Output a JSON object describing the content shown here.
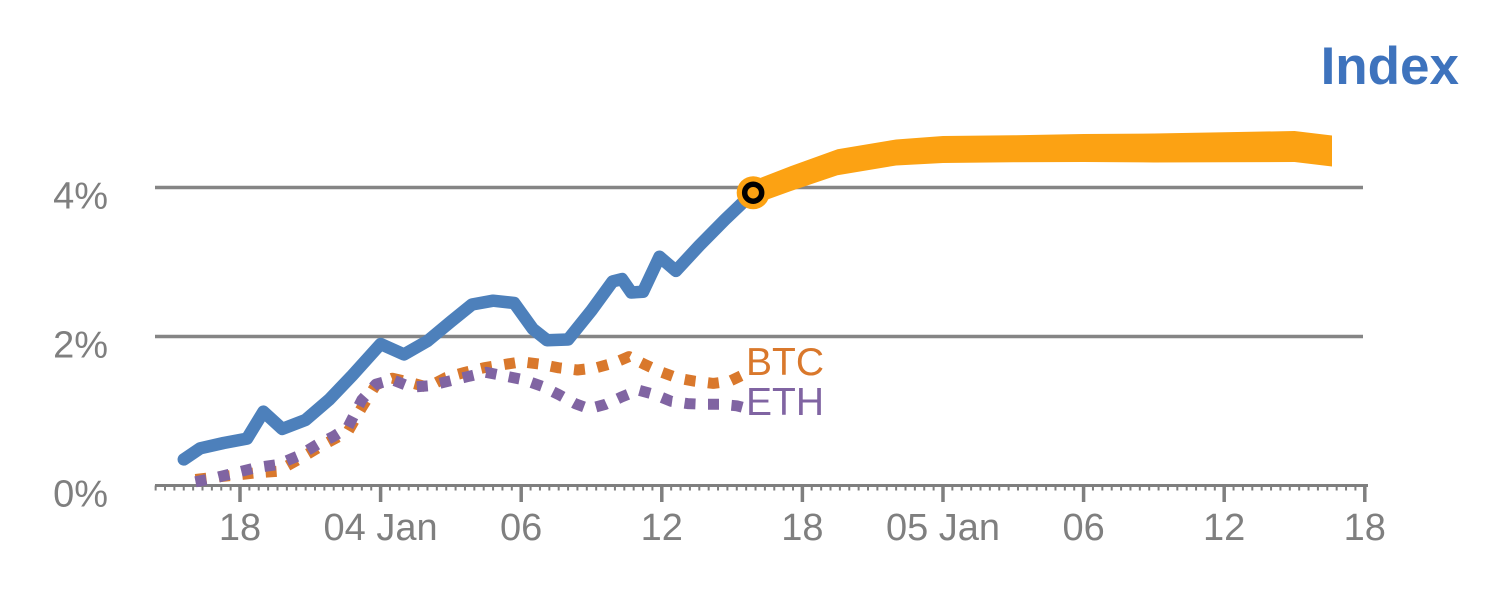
{
  "title": "Index",
  "colors": {
    "index_line": "#4d80bb",
    "index_forecast_band": "#fca213",
    "btc": "#d9782c",
    "eth": "#8064a2",
    "title_text": "#3e73bd",
    "axis_text": "#7f7f7f",
    "gridline": "#858585",
    "marker_ring": "#000000"
  },
  "chart_data": {
    "type": "line",
    "title": "Index",
    "xlabel": "",
    "ylabel": "",
    "x_unit": "hours since 03 Jan 00:00",
    "x_range": [
      14.4,
      66.1
    ],
    "ylim": [
      0,
      5
    ],
    "grid": "horizontal at 2% and 4%",
    "legend_position": "inline labels right of dotted series",
    "y_ticks": [
      {
        "v": 0,
        "label": "0%"
      },
      {
        "v": 2,
        "label": "2%"
      },
      {
        "v": 4,
        "label": "4%"
      }
    ],
    "x_ticks": [
      {
        "t": 18,
        "label": "18"
      },
      {
        "t": 24,
        "label": "04 Jan"
      },
      {
        "t": 30,
        "label": "06"
      },
      {
        "t": 36,
        "label": "12"
      },
      {
        "t": 42,
        "label": "18"
      },
      {
        "t": 48,
        "label": "05 Jan"
      },
      {
        "t": 54,
        "label": "06"
      },
      {
        "t": 60,
        "label": "12"
      },
      {
        "t": 66,
        "label": "18"
      }
    ],
    "minor_tick_step": 0.4,
    "series": [
      {
        "name": "Index",
        "style": "solid",
        "color_key": "index_line",
        "points": [
          [
            15.6,
            0.35
          ],
          [
            16.3,
            0.5
          ],
          [
            17.3,
            0.57
          ],
          [
            18.3,
            0.63
          ],
          [
            19.0,
            0.99
          ],
          [
            19.8,
            0.76
          ],
          [
            20.8,
            0.88
          ],
          [
            21.8,
            1.15
          ],
          [
            22.8,
            1.48
          ],
          [
            24.0,
            1.9
          ],
          [
            25.0,
            1.76
          ],
          [
            26.0,
            1.94
          ],
          [
            27.0,
            2.2
          ],
          [
            27.9,
            2.43
          ],
          [
            28.8,
            2.48
          ],
          [
            29.7,
            2.45
          ],
          [
            30.5,
            2.1
          ],
          [
            31.1,
            1.95
          ],
          [
            32.0,
            1.96
          ],
          [
            33.0,
            2.35
          ],
          [
            33.9,
            2.74
          ],
          [
            34.3,
            2.77
          ],
          [
            34.7,
            2.59
          ],
          [
            35.2,
            2.6
          ],
          [
            35.9,
            3.07
          ],
          [
            36.6,
            2.88
          ],
          [
            37.6,
            3.22
          ],
          [
            38.7,
            3.57
          ],
          [
            39.9,
            3.93
          ]
        ]
      },
      {
        "name": "Index forecast",
        "style": "band",
        "color_key": "index_forecast_band",
        "points": [
          [
            39.9,
            3.93
          ],
          [
            41.5,
            4.12
          ],
          [
            43.5,
            4.34
          ],
          [
            46.0,
            4.47
          ],
          [
            48.0,
            4.51
          ],
          [
            51.0,
            4.52
          ],
          [
            54.0,
            4.53
          ],
          [
            57.0,
            4.53
          ],
          [
            60.0,
            4.54
          ],
          [
            63.0,
            4.55
          ],
          [
            64.6,
            4.49
          ]
        ],
        "half_widths": [
          12,
          12.5,
          13,
          13,
          13.5,
          13.5,
          14,
          14.5,
          15,
          15.5,
          15.5
        ]
      },
      {
        "name": "BTC",
        "style": "dotted",
        "color_key": "btc",
        "points": [
          [
            16.1,
            0.08
          ],
          [
            16.9,
            0.11
          ],
          [
            17.8,
            0.14
          ],
          [
            18.7,
            0.17
          ],
          [
            19.6,
            0.19
          ],
          [
            20.5,
            0.35
          ],
          [
            21.3,
            0.5
          ],
          [
            22.0,
            0.62
          ],
          [
            22.6,
            0.72
          ],
          [
            23.2,
            1.05
          ],
          [
            23.8,
            1.35
          ],
          [
            24.5,
            1.44
          ],
          [
            25.3,
            1.38
          ],
          [
            26.0,
            1.32
          ],
          [
            26.8,
            1.45
          ],
          [
            27.6,
            1.52
          ],
          [
            28.4,
            1.58
          ],
          [
            29.2,
            1.62
          ],
          [
            30.0,
            1.66
          ],
          [
            30.8,
            1.63
          ],
          [
            31.6,
            1.58
          ],
          [
            32.4,
            1.55
          ],
          [
            33.2,
            1.58
          ],
          [
            34.0,
            1.65
          ],
          [
            34.6,
            1.73
          ],
          [
            35.3,
            1.62
          ],
          [
            36.0,
            1.52
          ],
          [
            36.7,
            1.44
          ],
          [
            37.4,
            1.4
          ],
          [
            38.2,
            1.37
          ],
          [
            38.9,
            1.4
          ],
          [
            39.5,
            1.49
          ]
        ]
      },
      {
        "name": "ETH",
        "style": "dotted",
        "color_key": "eth",
        "points": [
          [
            16.1,
            0.05
          ],
          [
            16.9,
            0.1
          ],
          [
            17.8,
            0.17
          ],
          [
            18.7,
            0.24
          ],
          [
            19.6,
            0.28
          ],
          [
            20.5,
            0.4
          ],
          [
            21.3,
            0.55
          ],
          [
            22.0,
            0.66
          ],
          [
            22.6,
            0.78
          ],
          [
            23.2,
            1.15
          ],
          [
            23.8,
            1.36
          ],
          [
            24.5,
            1.42
          ],
          [
            25.3,
            1.32
          ],
          [
            26.1,
            1.34
          ],
          [
            26.9,
            1.4
          ],
          [
            27.7,
            1.46
          ],
          [
            28.5,
            1.52
          ],
          [
            29.3,
            1.47
          ],
          [
            30.1,
            1.42
          ],
          [
            30.9,
            1.33
          ],
          [
            31.6,
            1.22
          ],
          [
            32.3,
            1.1
          ],
          [
            32.9,
            1.03
          ],
          [
            33.6,
            1.09
          ],
          [
            34.3,
            1.19
          ],
          [
            35.0,
            1.28
          ],
          [
            35.7,
            1.22
          ],
          [
            36.4,
            1.13
          ],
          [
            37.1,
            1.1
          ],
          [
            37.8,
            1.09
          ],
          [
            38.5,
            1.09
          ],
          [
            39.2,
            1.07
          ],
          [
            39.8,
            1.02
          ]
        ]
      }
    ],
    "annotations": {
      "forecast_start_marker": {
        "t": 39.9,
        "v": 3.93,
        "shape": "circle-with-black-ring"
      }
    }
  }
}
